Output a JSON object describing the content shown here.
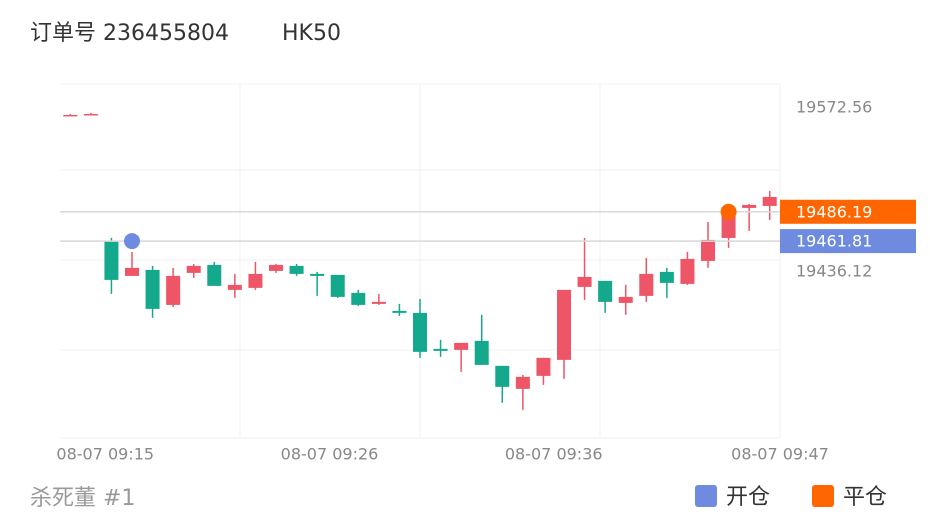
{
  "header": {
    "order": "订单号 236455804",
    "symbol": "HK50"
  },
  "chart_data": {
    "type": "candlestick",
    "up_color": "#ee5566",
    "down_color": "#14a98c",
    "open": [
      19566.74,
      19567.57,
      19461.96,
      19432.85,
      19437.84,
      19408.74,
      19435.35,
      19442.0,
      19421.21,
      19422.88,
      19437.01,
      19441.17,
      19434.52,
      19433.69,
      19418.72,
      19409.57,
      19403.75,
      19402.08,
      19372.14,
      19371.31,
      19378.8,
      19358.01,
      19338.88,
      19349.69,
      19363.0,
      19423.71,
      19428.7,
      19410.4,
      19416.22,
      19436.18,
      19426.2,
      19445.33,
      19464.45,
      19489.4,
      19491.06
    ],
    "high": [
      19567.57,
      19568.4,
      19464.45,
      19452.81,
      19441.17,
      19439.51,
      19442.83,
      19444.5,
      19434.52,
      19444.5,
      19442.83,
      19442.83,
      19436.18,
      19433.69,
      19421.21,
      19417.88,
      19409.57,
      19413.72,
      19379.63,
      19377.13,
      19400.42,
      19358.01,
      19350.52,
      19364.66,
      19421.21,
      19464.45,
      19428.7,
      19425.37,
      19447.82,
      19439.51,
      19452.81,
      19477.76,
      19484.41,
      19492.73,
      19503.54
    ],
    "low": [
      19565.91,
      19566.74,
      19417.88,
      19432.85,
      19397.93,
      19407.07,
      19431.19,
      19424.54,
      19414.56,
      19421.21,
      19435.35,
      19432.85,
      19416.22,
      19414.56,
      19407.9,
      19408.74,
      19399.59,
      19364.66,
      19365.49,
      19353.02,
      19358.84,
      19327.24,
      19321.41,
      19342.21,
      19347.22,
      19412.89,
      19402.08,
      19400.42,
      19411.23,
      19414.56,
      19425.37,
      19439.51,
      19456.14,
      19470.27,
      19479.42
    ],
    "close": [
      19566.74,
      19567.57,
      19429.53,
      19439.51,
      19405.41,
      19432.85,
      19441.17,
      19424.54,
      19425.37,
      19434.52,
      19442.0,
      19434.52,
      19432.85,
      19415.39,
      19408.74,
      19411.23,
      19402.08,
      19369.65,
      19370.48,
      19377.13,
      19358.84,
      19340.54,
      19348.86,
      19364.66,
      19421.21,
      19432.02,
      19411.23,
      19415.39,
      19434.52,
      19427.03,
      19446.99,
      19462.79,
      19484.41,
      19491.9,
      19498.55
    ],
    "xlim": [
      -0.5,
      34.5
    ],
    "xticks": [
      {
        "value": 1.7,
        "label": "08-07 09:15"
      },
      {
        "value": 12.6,
        "label": "08-07 09:26"
      },
      {
        "value": 23.5,
        "label": "08-07 09:36"
      },
      {
        "value": 34.5,
        "label": "08-07 09:47"
      }
    ],
    "ylim": [
      19298,
      19592.5
    ],
    "yticks": [
      19572.56,
      19436.12
    ],
    "markers": [
      {
        "name": "开仓",
        "color": "#6f8be0",
        "index": 3,
        "value": 19461.81
      },
      {
        "name": "平仓",
        "color": "#ff6600",
        "index": 32,
        "value": 19486.19
      }
    ]
  },
  "footer": {
    "user": "杀死董 #1"
  }
}
